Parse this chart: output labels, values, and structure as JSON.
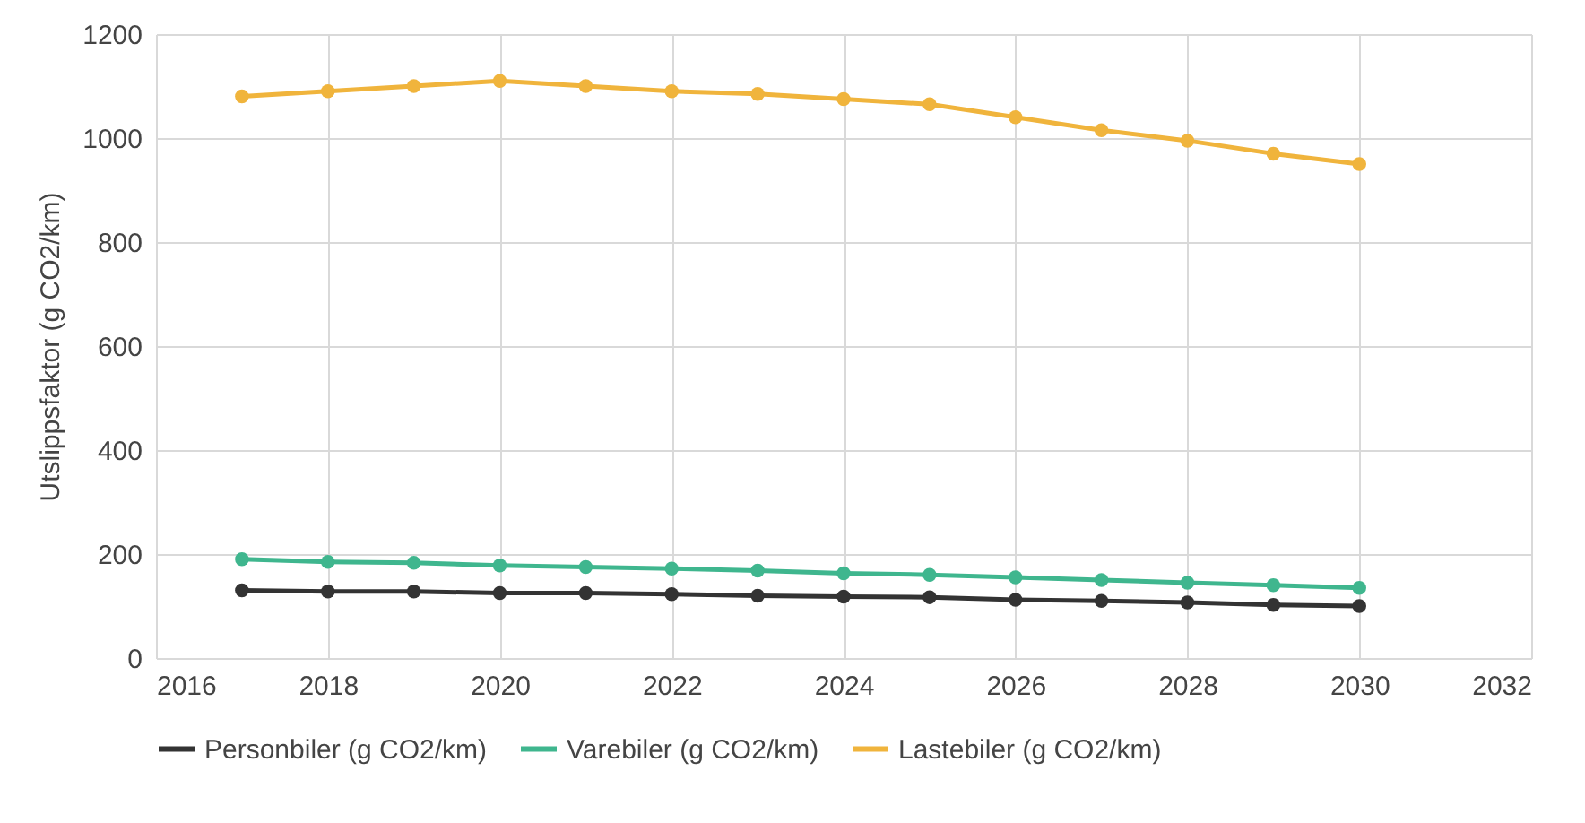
{
  "chart_data": {
    "type": "line",
    "ylabel": "Utslippsfaktor (g CO2/km)",
    "x": [
      2017,
      2018,
      2019,
      2020,
      2021,
      2022,
      2023,
      2024,
      2025,
      2026,
      2027,
      2028,
      2029,
      2030
    ],
    "series": [
      {
        "name": "Personbiler (g CO2/km)",
        "color": "#333333",
        "values": [
          130,
          128,
          128,
          125,
          125,
          123,
          120,
          118,
          117,
          112,
          110,
          107,
          102,
          100
        ]
      },
      {
        "name": "Varebiler (g CO2/km)",
        "color": "#3fb68e",
        "values": [
          190,
          185,
          183,
          178,
          175,
          172,
          168,
          163,
          160,
          155,
          150,
          145,
          140,
          135
        ]
      },
      {
        "name": "Lastebiler (g CO2/km)",
        "color": "#f0b43c",
        "values": [
          1080,
          1090,
          1100,
          1110,
          1100,
          1090,
          1085,
          1075,
          1065,
          1040,
          1015,
          995,
          970,
          950
        ]
      }
    ],
    "xlim": [
      2016,
      2032
    ],
    "xticks": [
      2016,
      2018,
      2020,
      2022,
      2024,
      2026,
      2028,
      2030,
      2032
    ],
    "ylim": [
      0,
      1200
    ],
    "yticks": [
      0,
      200,
      400,
      600,
      800,
      1000,
      1200
    ],
    "grid": true,
    "legend": "bottom",
    "marker": "circle",
    "line_style": "solid"
  }
}
